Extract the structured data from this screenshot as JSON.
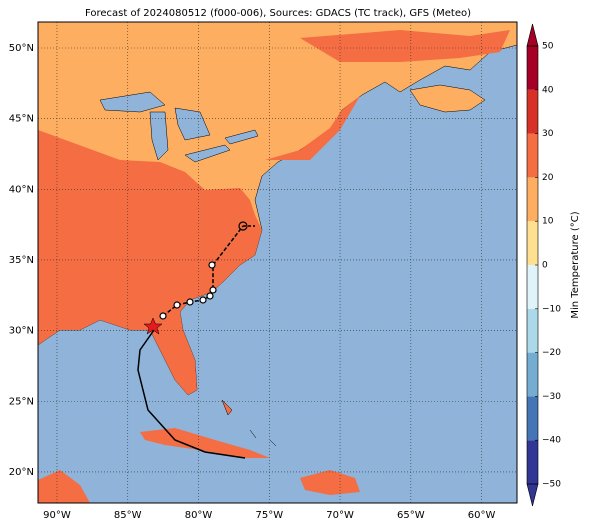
{
  "title": "Forecast of 2024080512 (f000-006), Sources: GDACS (TC track), GFS (Meteo)",
  "map": {
    "xlim": [
      -91.34,
      -57.5
    ],
    "ylim": [
      17.8,
      51.84
    ],
    "xticks": [
      {
        "value": -90,
        "label": "90°W"
      },
      {
        "value": -85,
        "label": "85°W"
      },
      {
        "value": -80,
        "label": "80°W"
      },
      {
        "value": -75,
        "label": "75°W"
      },
      {
        "value": -70,
        "label": "70°W"
      },
      {
        "value": -65,
        "label": "65°W"
      },
      {
        "value": -60,
        "label": "60°W"
      }
    ],
    "yticks": [
      {
        "value": 20,
        "label": "20°N"
      },
      {
        "value": 25,
        "label": "25°N"
      },
      {
        "value": 30,
        "label": "30°N"
      },
      {
        "value": 35,
        "label": "35°N"
      },
      {
        "value": 40,
        "label": "40°N"
      },
      {
        "value": 45,
        "label": "45°N"
      },
      {
        "value": 50,
        "label": "50°N"
      }
    ]
  },
  "colorbar": {
    "label": "Min Temperature (°C)",
    "lim": [
      -50,
      50
    ],
    "ticks": [
      {
        "value": -50,
        "label": "−50"
      },
      {
        "value": -40,
        "label": "−40"
      },
      {
        "value": -30,
        "label": "−30"
      },
      {
        "value": -20,
        "label": "−20"
      },
      {
        "value": -10,
        "label": "−10"
      },
      0,
      10,
      20,
      30,
      40,
      50
    ],
    "colors": [
      "#313695",
      "#4575b4",
      "#74add1",
      "#abd9e9",
      "#e0f3f8",
      "#fee090",
      "#fdae61",
      "#f46d43",
      "#d73027",
      "#a50026"
    ]
  }
}
